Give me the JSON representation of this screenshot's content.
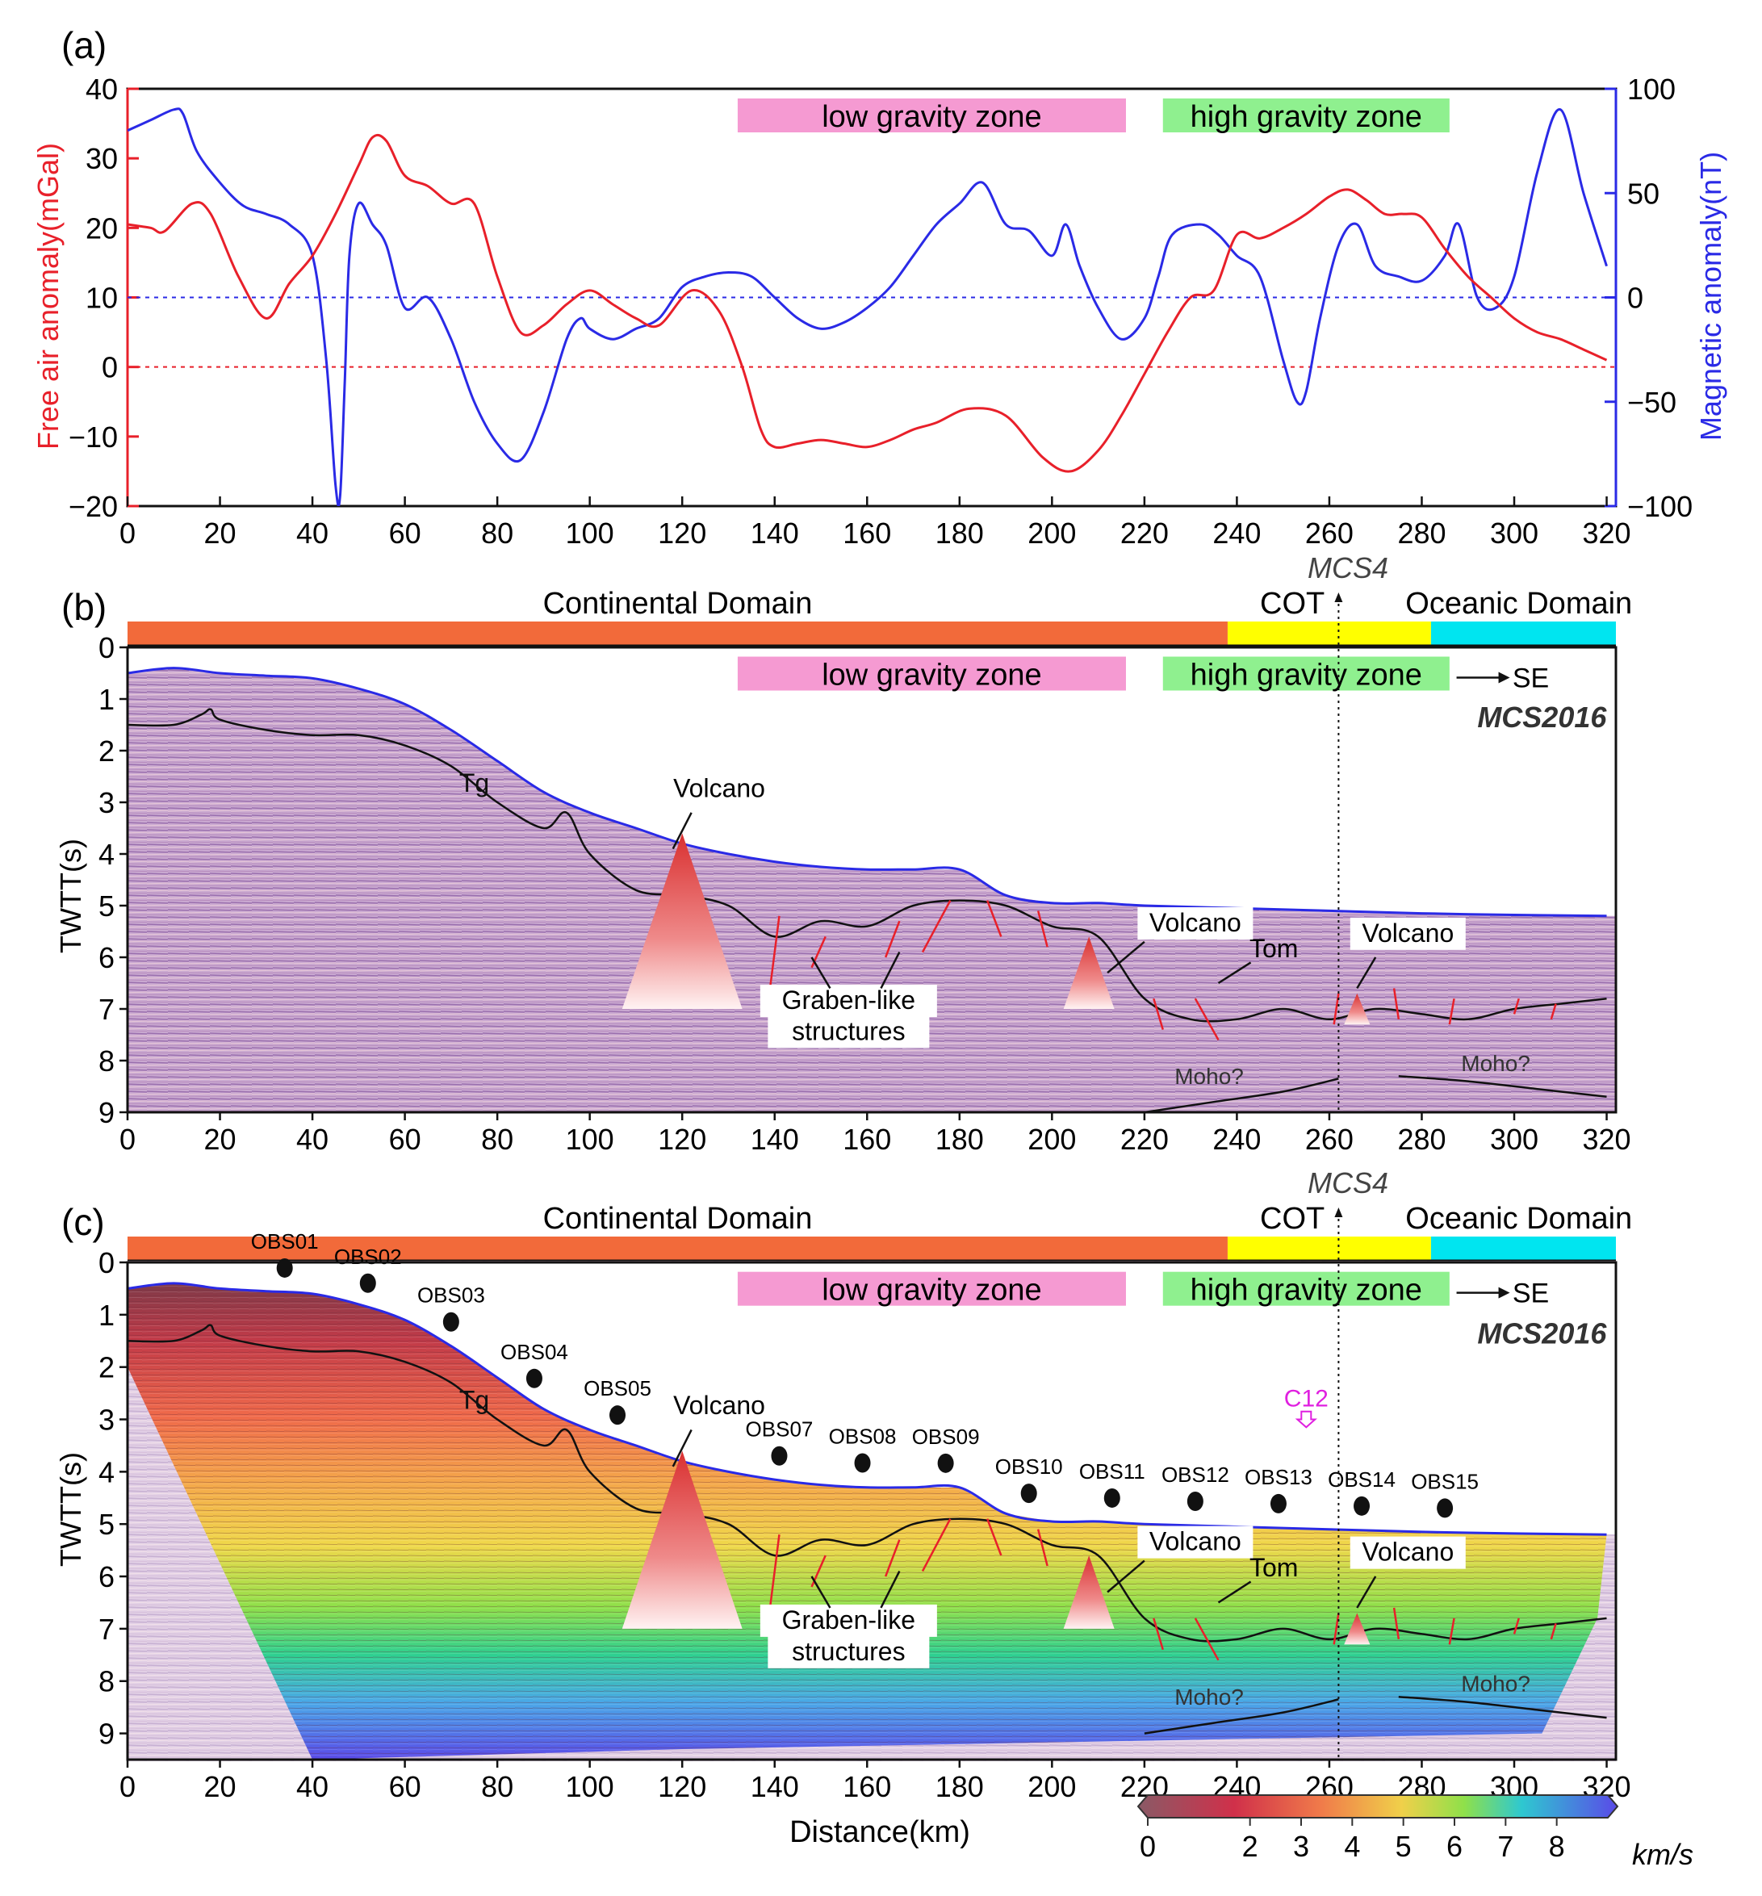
{
  "figure": {
    "panels": [
      {
        "label": "(a)",
        "zones": {
          "low": "low gravity zone",
          "high": "high gravity zone"
        },
        "colors": {
          "gravity": "#e8202a",
          "magnetic": "#2a2ae6",
          "lowZone": "#f59ad2",
          "highZone": "#8ff08f"
        }
      },
      {
        "label": "(b)",
        "survey": "MCS2016",
        "direction": "SE",
        "crossline": "MCS4",
        "ylabel": "TWTT(s)",
        "domains": [
          "Continental Domain",
          "COT",
          "Oceanic Domain"
        ],
        "domain_colors": [
          "#f26a3a",
          "#ffff00",
          "#00e5f0"
        ],
        "annotations": {
          "tg": "Tg",
          "tom": "Tom",
          "volcano": "Volcano",
          "graben_1": "Graben-like",
          "graben_2": "structures",
          "moho": "Moho?"
        },
        "yticks": [
          "0",
          "1",
          "2",
          "3",
          "4",
          "5",
          "6",
          "7",
          "8",
          "9"
        ]
      },
      {
        "label": "(c)",
        "survey": "MCS2016",
        "direction": "SE",
        "crossline": "MCS4",
        "profile_marker": "C12",
        "ylabel": "TWTT(s)",
        "xlabel": "Distance(km)",
        "obs": [
          "OBS01",
          "OBS02",
          "OBS03",
          "OBS04",
          "OBS05",
          "OBS07",
          "OBS08",
          "OBS09",
          "OBS10",
          "OBS11",
          "OBS12",
          "OBS13",
          "OBS14",
          "OBS15"
        ],
        "obs_km": [
          34,
          52,
          70,
          88,
          106,
          141,
          159,
          177,
          195,
          213,
          231,
          249,
          267,
          285
        ],
        "colorbar": {
          "ticks": [
            "0",
            "2",
            "3",
            "4",
            "5",
            "6",
            "7",
            "8"
          ],
          "unit": "km/s"
        },
        "yticks": [
          "0",
          "1",
          "2",
          "3",
          "4",
          "5",
          "6",
          "7",
          "8",
          "9"
        ]
      }
    ],
    "xticks": [
      "0",
      "20",
      "40",
      "60",
      "80",
      "100",
      "120",
      "140",
      "160",
      "180",
      "200",
      "220",
      "240",
      "260",
      "280",
      "300",
      "320"
    ]
  },
  "chart_data": [
    {
      "type": "line",
      "panel": "(a)",
      "xlabel": "",
      "ylabel": "Free air anomaly(mGal)",
      "y2label": "Magnetic anomaly(nT)",
      "xlim": [
        0,
        322
      ],
      "ylim": [
        -20,
        40
      ],
      "y2lim": [
        -100,
        100
      ],
      "yticks": [
        "−20",
        "−10",
        "0",
        "10",
        "20",
        "30",
        "40"
      ],
      "y2ticks": [
        "−100",
        "−50",
        "0",
        "50",
        "100"
      ],
      "series": [
        {
          "name": "Free air anomaly",
          "axis": "left",
          "x": [
            0,
            5,
            8,
            14,
            18,
            24,
            30,
            35,
            40,
            45,
            50,
            53,
            56,
            60,
            65,
            70,
            75,
            80,
            85,
            90,
            95,
            100,
            105,
            110,
            115,
            122,
            128,
            133,
            137,
            140,
            145,
            150,
            155,
            160,
            165,
            170,
            175,
            182,
            190,
            198,
            204,
            210,
            215,
            220,
            225,
            230,
            235,
            240,
            245,
            250,
            255,
            260,
            264,
            268,
            272,
            276,
            280,
            285,
            290,
            295,
            300,
            305,
            310,
            315,
            320
          ],
          "values": [
            20.5,
            20,
            19.5,
            23.5,
            22,
            13,
            7,
            12,
            16,
            22,
            29,
            33,
            32.5,
            27.5,
            26,
            23.5,
            23.5,
            13,
            5,
            6,
            9,
            11,
            9,
            7,
            6,
            11,
            8,
            0,
            -9,
            -11.5,
            -11,
            -10.5,
            -11,
            -11.5,
            -10.5,
            -9,
            -8,
            -6,
            -7,
            -13,
            -15,
            -12,
            -7,
            -1,
            5,
            10,
            11,
            19,
            18.5,
            20,
            22,
            24.5,
            25.5,
            24,
            22,
            22,
            21.5,
            17,
            13,
            10,
            7,
            5,
            4,
            2.5,
            1
          ]
        },
        {
          "name": "Magnetic anomaly",
          "axis": "right",
          "x": [
            0,
            5,
            10,
            12,
            15,
            20,
            25,
            30,
            35,
            40,
            43,
            45,
            46,
            47,
            48,
            50,
            53,
            56,
            60,
            65,
            70,
            75,
            80,
            85,
            90,
            95,
            98,
            100,
            105,
            110,
            115,
            120,
            125,
            130,
            135,
            140,
            145,
            150,
            155,
            160,
            165,
            170,
            175,
            180,
            185,
            190,
            195,
            200,
            203,
            206,
            210,
            215,
            220,
            223,
            226,
            232,
            236,
            240,
            245,
            250,
            253,
            255,
            258,
            262,
            266,
            270,
            275,
            280,
            285,
            288,
            292,
            296,
            300,
            305,
            310,
            315,
            320
          ],
          "values": [
            80,
            85,
            90,
            88,
            70,
            55,
            44,
            40,
            35,
            20,
            -30,
            -90,
            -95,
            -40,
            20,
            45,
            35,
            25,
            -5,
            0,
            -20,
            -50,
            -70,
            -78,
            -55,
            -20,
            -10,
            -15,
            -20,
            -15,
            -10,
            5,
            10,
            12,
            10,
            0,
            -10,
            -15,
            -12,
            -5,
            5,
            20,
            35,
            45,
            55,
            35,
            32,
            20,
            35,
            15,
            -5,
            -20,
            -10,
            10,
            30,
            35,
            30,
            20,
            10,
            -30,
            -50,
            -45,
            -10,
            25,
            35,
            15,
            10,
            8,
            20,
            35,
            0,
            -5,
            10,
            60,
            90,
            50,
            15
          ]
        }
      ],
      "reference_lines": [
        {
          "axis": "left",
          "value": 0
        },
        {
          "axis": "right",
          "value": 0
        }
      ],
      "zones": [
        {
          "label": "low gravity zone",
          "from_km": 132,
          "to_km": 216
        },
        {
          "label": "high gravity zone",
          "from_km": 224,
          "to_km": 286
        }
      ]
    },
    {
      "type": "line",
      "panel": "(b)",
      "title": "MCS2016",
      "ylabel": "TWTT(s)",
      "xlim": [
        0,
        322
      ],
      "ylim": [
        9,
        0
      ],
      "domains": [
        {
          "label": "Continental Domain",
          "from_km": 0,
          "to_km": 238
        },
        {
          "label": "COT",
          "from_km": 238,
          "to_km": 282
        },
        {
          "label": "Oceanic Domain",
          "from_km": 282,
          "to_km": 322
        }
      ],
      "series": [
        {
          "name": "Seafloor",
          "x": [
            0,
            10,
            20,
            30,
            40,
            50,
            60,
            70,
            80,
            90,
            100,
            110,
            120,
            130,
            140,
            150,
            160,
            170,
            180,
            190,
            200,
            210,
            220,
            240,
            260,
            280,
            300,
            320
          ],
          "values": [
            0.5,
            0.4,
            0.5,
            0.55,
            0.6,
            0.8,
            1.1,
            1.6,
            2.2,
            2.8,
            3.2,
            3.5,
            3.8,
            4.0,
            4.15,
            4.25,
            4.3,
            4.3,
            4.3,
            4.8,
            4.95,
            4.95,
            5.0,
            5.05,
            5.1,
            5.15,
            5.18,
            5.2
          ]
        },
        {
          "name": "Tg",
          "x": [
            0,
            10,
            16,
            18,
            20,
            30,
            40,
            50,
            60,
            70,
            80,
            90,
            95,
            100,
            110,
            120,
            130,
            140,
            150,
            160,
            170,
            180,
            190,
            200,
            210,
            220,
            230,
            240,
            250,
            260,
            270,
            280,
            290,
            300,
            310,
            320
          ],
          "values": [
            1.5,
            1.5,
            1.3,
            1.2,
            1.4,
            1.6,
            1.7,
            1.7,
            1.9,
            2.3,
            3.0,
            3.5,
            3.2,
            4.0,
            4.7,
            4.8,
            5.0,
            5.6,
            5.3,
            5.4,
            5.0,
            4.9,
            5.0,
            5.4,
            5.6,
            6.8,
            7.2,
            7.2,
            7.0,
            7.2,
            7.0,
            7.1,
            7.2,
            7.0,
            6.9,
            6.8
          ]
        },
        {
          "name": "Moho?",
          "x": [
            220,
            235,
            250,
            262
          ],
          "values": [
            9.0,
            8.8,
            8.6,
            8.35
          ]
        },
        {
          "name": "Moho? (oceanic)",
          "x": [
            275,
            290,
            305,
            320
          ],
          "values": [
            8.3,
            8.4,
            8.55,
            8.7
          ]
        }
      ],
      "annotations": [
        {
          "label": "Volcano",
          "x_km": 120
        },
        {
          "label": "Volcano",
          "x_km": 208
        },
        {
          "label": "Volcano",
          "x_km": 266
        },
        {
          "label": "Tg"
        },
        {
          "label": "Tom"
        },
        {
          "label": "Graben-like structures"
        },
        {
          "label": "MCS4",
          "x_km": 262
        }
      ]
    },
    {
      "type": "heatmap",
      "panel": "(c)",
      "title": "MCS2016",
      "xlabel": "Distance(km)",
      "ylabel": "TWTT(s)",
      "xlim": [
        0,
        322
      ],
      "ylim": [
        9.5,
        0
      ],
      "colorbar": {
        "range": [
          0,
          9
        ],
        "ticks": [
          0,
          2,
          3,
          4,
          5,
          6,
          7,
          8
        ],
        "unit": "km/s"
      },
      "obs_stations": [
        "OBS01",
        "OBS02",
        "OBS03",
        "OBS04",
        "OBS05",
        "OBS07",
        "OBS08",
        "OBS09",
        "OBS10",
        "OBS11",
        "OBS12",
        "OBS13",
        "OBS14",
        "OBS15"
      ]
    }
  ]
}
